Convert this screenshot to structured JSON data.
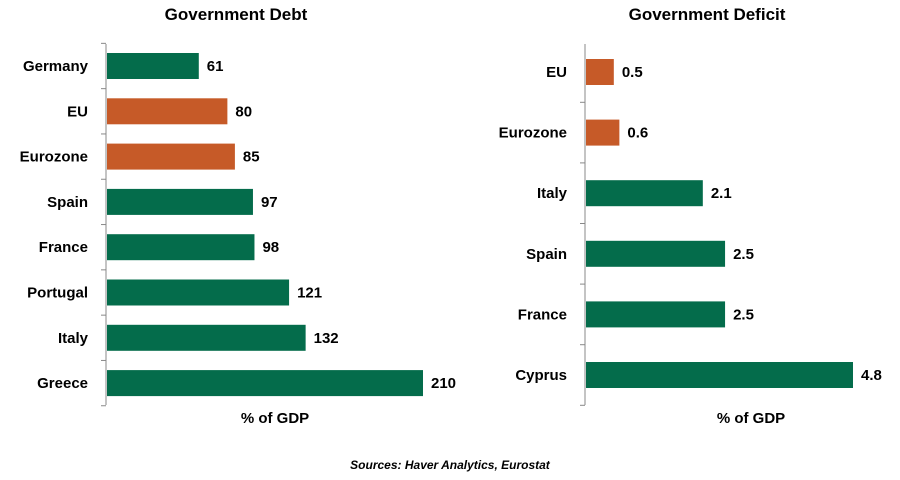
{
  "colors": {
    "country": "#046c4b",
    "aggregate": "#c65a28",
    "axis": "#888888"
  },
  "source": "Sources: Haver Analytics, Eurostat",
  "chart_data": [
    {
      "type": "bar",
      "orientation": "horizontal",
      "title": "Government Debt",
      "xlabel": "% of GDP",
      "ylabel": "",
      "categories": [
        "Germany",
        "EU",
        "Eurozone",
        "Spain",
        "France",
        "Portugal",
        "Italy",
        "Greece"
      ],
      "values": [
        61,
        80,
        85,
        97,
        98,
        121,
        132,
        210
      ],
      "value_labels": [
        "61",
        "80",
        "85",
        "97",
        "98",
        "121",
        "132",
        "210"
      ],
      "highlight": [
        false,
        true,
        true,
        false,
        false,
        false,
        false,
        false
      ],
      "xlim": [
        0,
        210
      ],
      "grid": false
    },
    {
      "type": "bar",
      "orientation": "horizontal",
      "title": "Government Deficit",
      "xlabel": "% of GDP",
      "ylabel": "",
      "categories": [
        "EU",
        "Eurozone",
        "Italy",
        "Spain",
        "France",
        "Cyprus"
      ],
      "values": [
        0.5,
        0.6,
        2.1,
        2.5,
        2.5,
        4.8
      ],
      "value_labels": [
        "0.5",
        "0.6",
        "2.1",
        "2.5",
        "2.5",
        "4.8"
      ],
      "highlight": [
        true,
        true,
        false,
        false,
        false,
        false
      ],
      "xlim": [
        0,
        4.8
      ],
      "grid": false
    }
  ]
}
